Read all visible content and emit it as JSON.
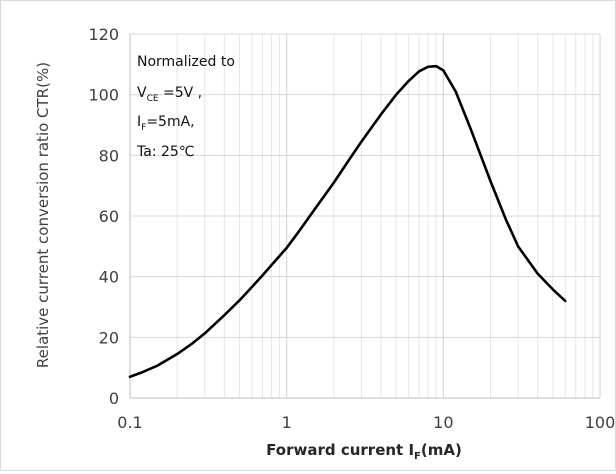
{
  "chart_data": {
    "type": "line",
    "title": "",
    "xlabel": {
      "main": "Forward current I",
      "sub": "F",
      "suffix": "(mA)"
    },
    "ylabel": "Relative current conversion ratio CTR(%)",
    "x_scale": "log",
    "xlim": [
      0.1,
      100
    ],
    "ylim": [
      0,
      120
    ],
    "x_ticks": [
      0.1,
      1,
      10,
      100
    ],
    "x_tick_labels": [
      "0.1",
      "1",
      "10",
      "100"
    ],
    "y_ticks": [
      0,
      20,
      40,
      60,
      80,
      100,
      120
    ],
    "y_tick_labels": [
      "0",
      "20",
      "40",
      "60",
      "80",
      "100",
      "120"
    ],
    "grid": true,
    "line_color": "#000000",
    "series": [
      {
        "x": [
          0.1,
          0.12,
          0.15,
          0.2,
          0.25,
          0.3,
          0.4,
          0.5,
          0.6,
          0.7,
          0.8,
          1,
          1.2,
          1.5,
          2,
          2.5,
          3,
          4,
          5,
          6,
          7,
          8,
          9,
          10,
          12,
          15,
          20,
          25,
          30,
          40,
          50,
          60
        ],
        "y": [
          7,
          8.5,
          10.7,
          14.5,
          18,
          21.3,
          27.3,
          32.2,
          36.6,
          40.4,
          43.8,
          49.5,
          55,
          62,
          71,
          78.5,
          84.5,
          93.5,
          100,
          104.5,
          107.7,
          109.2,
          109.4,
          108,
          101,
          88.5,
          71.5,
          59,
          50,
          41,
          35.8,
          32
        ]
      }
    ],
    "annotation": {
      "line1": "Normalized to",
      "line2_main": "V",
      "line2_sub": "CE",
      "line2_suffix": " =5V ,",
      "line3_main": "I",
      "line3_sub": "F",
      "line3_suffix": "=5mA,",
      "line4": "Ta: 25℃"
    }
  }
}
